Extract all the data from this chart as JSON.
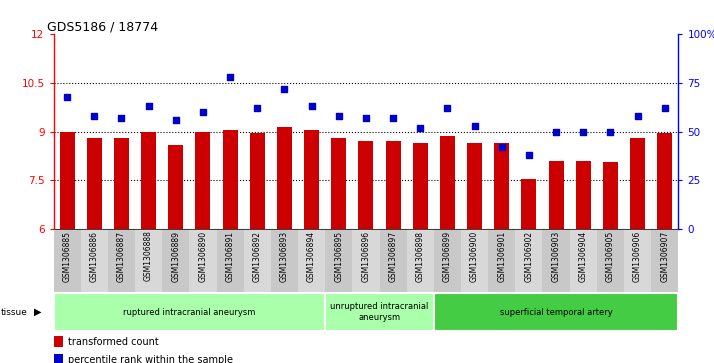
{
  "title": "GDS5186 / 18774",
  "samples": [
    "GSM1306885",
    "GSM1306886",
    "GSM1306887",
    "GSM1306888",
    "GSM1306889",
    "GSM1306890",
    "GSM1306891",
    "GSM1306892",
    "GSM1306893",
    "GSM1306894",
    "GSM1306895",
    "GSM1306896",
    "GSM1306897",
    "GSM1306898",
    "GSM1306899",
    "GSM1306900",
    "GSM1306901",
    "GSM1306902",
    "GSM1306903",
    "GSM1306904",
    "GSM1306905",
    "GSM1306906",
    "GSM1306907"
  ],
  "bar_values": [
    9.0,
    8.8,
    8.8,
    9.0,
    8.6,
    9.0,
    9.05,
    8.95,
    9.15,
    9.05,
    8.8,
    8.7,
    8.7,
    8.65,
    8.85,
    8.65,
    8.65,
    7.55,
    8.1,
    8.1,
    8.05,
    8.8,
    8.95
  ],
  "dot_values": [
    68,
    58,
    57,
    63,
    56,
    60,
    78,
    62,
    72,
    63,
    58,
    57,
    57,
    52,
    62,
    53,
    42,
    38,
    50,
    50,
    50,
    58,
    62
  ],
  "ylim_left": [
    6,
    12
  ],
  "ylim_right": [
    0,
    100
  ],
  "yticks_left": [
    6,
    7.5,
    9,
    10.5,
    12
  ],
  "yticks_right": [
    0,
    25,
    50,
    75,
    100
  ],
  "ytick_labels_left": [
    "6",
    "7.5",
    "9",
    "10.5",
    "12"
  ],
  "ytick_labels_right": [
    "0",
    "25",
    "50",
    "75",
    "100%"
  ],
  "groups": [
    {
      "label": "ruptured intracranial aneurysm",
      "start": 0,
      "end": 10,
      "color": "#AEEAAE"
    },
    {
      "label": "unruptured intracranial\naneurysm",
      "start": 10,
      "end": 14,
      "color": "#AEEAAE"
    },
    {
      "label": "superficial temporal artery",
      "start": 14,
      "end": 23,
      "color": "#3CB371"
    }
  ],
  "bar_color": "#CC0000",
  "dot_color": "#0000CC",
  "legend_bar_label": "transformed count",
  "legend_dot_label": "percentile rank within the sample",
  "bar_width": 0.55,
  "cell_colors_even": "#CCCCCC",
  "cell_colors_odd": "#DDDDDD",
  "group1_color": "#AAFFAA",
  "group2_color": "#55CC55"
}
